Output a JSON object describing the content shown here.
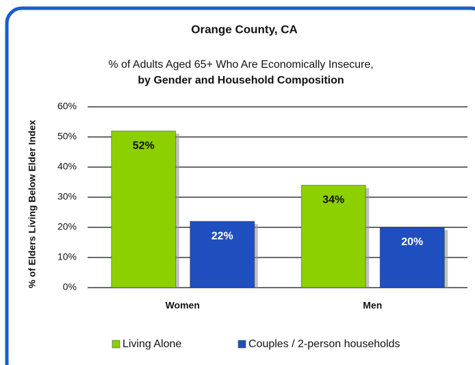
{
  "chart_data": {
    "type": "bar",
    "title": "Orange County, CA",
    "subtitle": [
      "% of Adults Aged 65+ Who Are Economically Insecure,",
      "by Gender and Household Composition"
    ],
    "y_label": "% of  Elders Living Below  Elder Index",
    "categories": [
      "Women",
      "Men"
    ],
    "series": [
      {
        "name": "Living Alone",
        "color": "#8cd000",
        "values": [
          52,
          34
        ],
        "value_labels": [
          "52%",
          "34%"
        ]
      },
      {
        "name": "Couples / 2-person households",
        "color": "#1f4fbf",
        "values": [
          22,
          20
        ],
        "value_labels": [
          "22%",
          "20%"
        ]
      }
    ],
    "ylim": [
      0,
      60
    ],
    "yticks": [
      {
        "value": 0,
        "label": "0%"
      },
      {
        "value": 10,
        "label": "10%"
      },
      {
        "value": 20,
        "label": "20%"
      },
      {
        "value": 30,
        "label": "30%"
      },
      {
        "value": 40,
        "label": "40%"
      },
      {
        "value": 50,
        "label": "50%"
      },
      {
        "value": 60,
        "label": "60%"
      }
    ],
    "grid": true,
    "legend": "bottom"
  }
}
